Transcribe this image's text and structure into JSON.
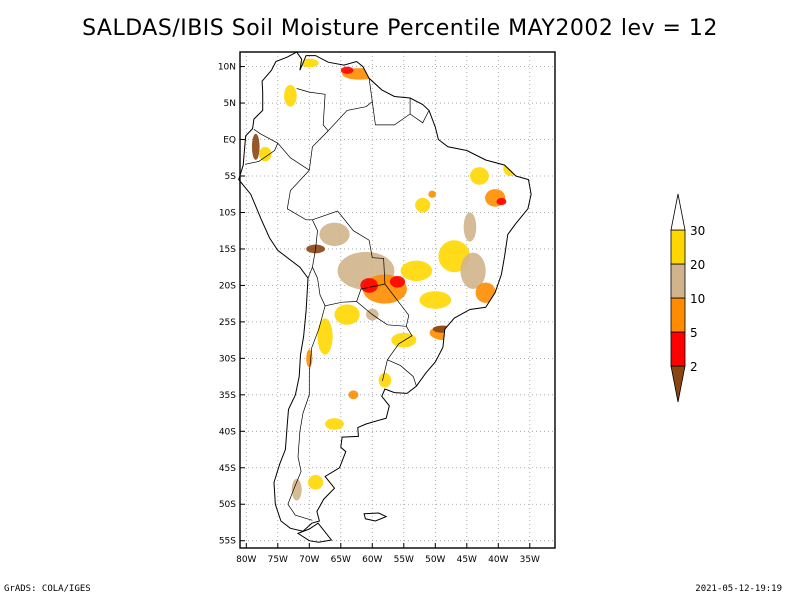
{
  "title": "SALDAS/IBIS Soil Moisture Percentile MAY2002 lev = 12",
  "footer": {
    "left": "GrADS: COLA/IGES",
    "right": "2021-05-12-19:19"
  },
  "map": {
    "lon_range": [
      -81,
      -31
    ],
    "lat_range": [
      -56,
      12
    ],
    "lat_ticks": [
      {
        "value": 10,
        "label": "10N"
      },
      {
        "value": 5,
        "label": "5N"
      },
      {
        "value": 0,
        "label": "EQ"
      },
      {
        "value": -5,
        "label": "5S"
      },
      {
        "value": -10,
        "label": "10S"
      },
      {
        "value": -15,
        "label": "15S"
      },
      {
        "value": -20,
        "label": "20S"
      },
      {
        "value": -25,
        "label": "25S"
      },
      {
        "value": -30,
        "label": "30S"
      },
      {
        "value": -35,
        "label": "35S"
      },
      {
        "value": -40,
        "label": "40S"
      },
      {
        "value": -45,
        "label": "45S"
      },
      {
        "value": -50,
        "label": "50S"
      },
      {
        "value": -55,
        "label": "55S"
      }
    ],
    "lon_ticks": [
      {
        "value": -80,
        "label": "80W"
      },
      {
        "value": -75,
        "label": "75W"
      },
      {
        "value": -70,
        "label": "70W"
      },
      {
        "value": -65,
        "label": "65W"
      },
      {
        "value": -60,
        "label": "60W"
      },
      {
        "value": -55,
        "label": "55W"
      },
      {
        "value": -50,
        "label": "50W"
      },
      {
        "value": -45,
        "label": "45W"
      },
      {
        "value": -40,
        "label": "40W"
      },
      {
        "value": -35,
        "label": "35W"
      }
    ],
    "grid": true,
    "colors": {
      "c0": "#8b4513",
      "c1": "#ff0000",
      "c2": "#ff8c00",
      "c3": "#d2b48c",
      "c4": "#ffd700"
    }
  },
  "legend": {
    "labels": [
      "2",
      "5",
      "10",
      "20",
      "30"
    ],
    "colors": [
      "#8b4513",
      "#ff0000",
      "#ff8c00",
      "#d2b48c",
      "#ffd700",
      "#ffffff"
    ],
    "placement": "right"
  }
}
